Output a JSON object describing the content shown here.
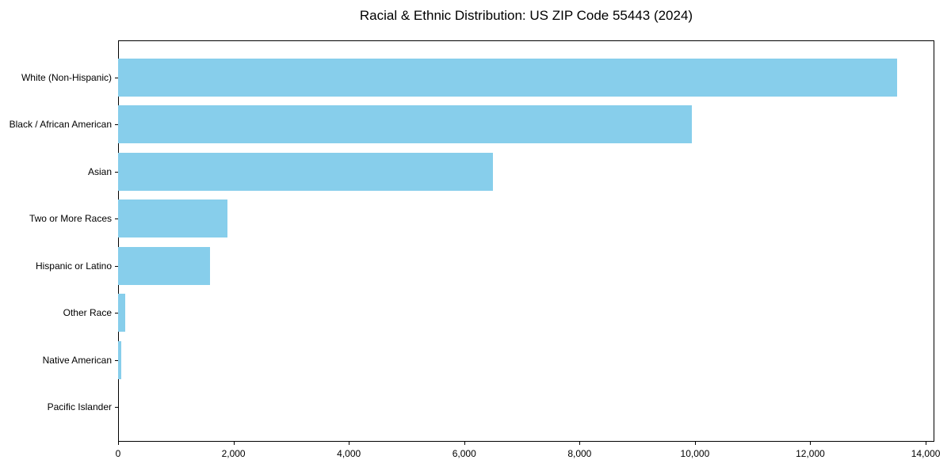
{
  "title": "Racial & Ethnic Distribution: US ZIP Code 55443 (2024)",
  "chart_data": {
    "type": "bar",
    "orientation": "horizontal",
    "title": "Racial & Ethnic Distribution: US ZIP Code 55443 (2024)",
    "xlabel": "",
    "ylabel": "",
    "categories": [
      "White (Non-Hispanic)",
      "Black / African American",
      "Asian",
      "Two or More Races",
      "Hispanic or Latino",
      "Other Race",
      "Native American",
      "Pacific Islander"
    ],
    "values": [
      13500,
      9950,
      6500,
      1900,
      1600,
      125,
      50,
      0
    ],
    "xlim": [
      0,
      14150
    ],
    "x_ticks": [
      0,
      2000,
      4000,
      6000,
      8000,
      10000,
      12000,
      14000
    ],
    "x_tick_labels": [
      "0",
      "2,000",
      "4,000",
      "6,000",
      "8,000",
      "10,000",
      "12,000",
      "14,000"
    ],
    "grid": false,
    "legend": false,
    "bar_color": "#87CEEB",
    "axis_color": "#000000",
    "text_color": "#000000",
    "background_color": "#FFFFFF"
  }
}
